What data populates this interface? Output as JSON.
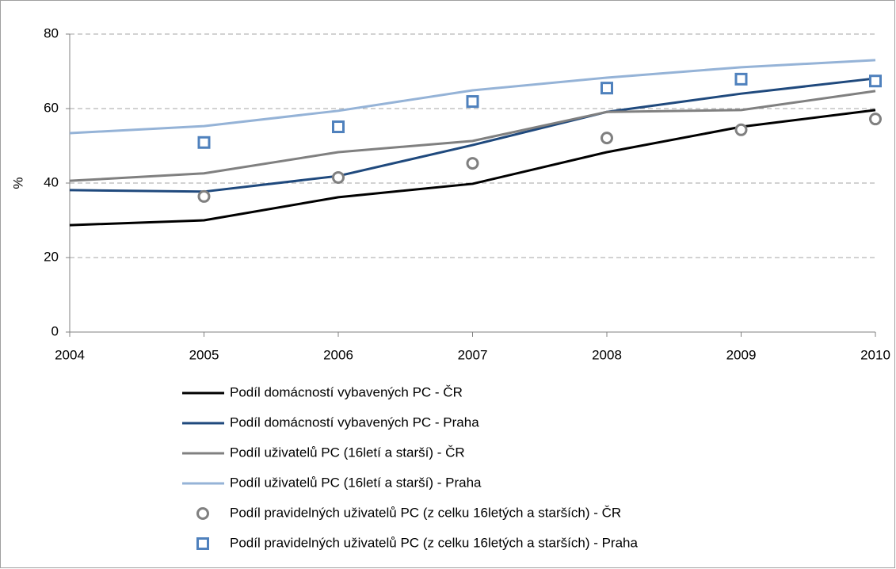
{
  "chart_data": {
    "type": "line",
    "y_label": "%",
    "x": [
      2004,
      2005,
      2006,
      2007,
      2008,
      2009,
      2010
    ],
    "xlim": [
      2004,
      2010
    ],
    "xticks": [
      2004,
      2005,
      2006,
      2007,
      2008,
      2009,
      2010
    ],
    "ylim": [
      0,
      80
    ],
    "yticks": [
      0,
      20,
      40,
      60,
      80
    ],
    "grid": true,
    "legend": "bottom",
    "series": [
      {
        "name": "Podíl domácností vybavených PC - ČR",
        "color": "#000000",
        "mode": "line",
        "values": [
          28.7,
          30.0,
          36.2,
          39.8,
          48.3,
          55.1,
          59.6
        ]
      },
      {
        "name": "Podíl domácností vybavených PC - Praha",
        "color": "#1f497d",
        "mode": "line",
        "values": [
          38.1,
          37.7,
          41.9,
          50.2,
          59.1,
          64.0,
          68.1
        ]
      },
      {
        "name": "Podíl uživatelů PC (16letí a starší) - ČR",
        "color": "#808080",
        "mode": "line",
        "values": [
          40.6,
          42.6,
          48.3,
          51.3,
          59.1,
          59.6,
          64.7
        ]
      },
      {
        "name": "Podíl uživatelů PC (16letí a starší) - Praha",
        "color": "#95b3d7",
        "mode": "line",
        "values": [
          53.4,
          55.3,
          59.4,
          64.9,
          68.3,
          71.1,
          73.0
        ]
      },
      {
        "name": "Podíl pravidelných uživatelů PC (z celku 16letých a starších) - ČR",
        "color": "#808080",
        "mode": "markers",
        "marker": "circle",
        "values": [
          null,
          36.4,
          41.5,
          45.3,
          52.1,
          54.3,
          57.2
        ]
      },
      {
        "name": "Podíl pravidelných uživatelů PC (z celku 16letých a starších) - Praha",
        "color": "#4f81bd",
        "mode": "markers",
        "marker": "square",
        "values": [
          null,
          50.9,
          55.1,
          61.9,
          65.5,
          67.9,
          67.4
        ]
      }
    ]
  }
}
